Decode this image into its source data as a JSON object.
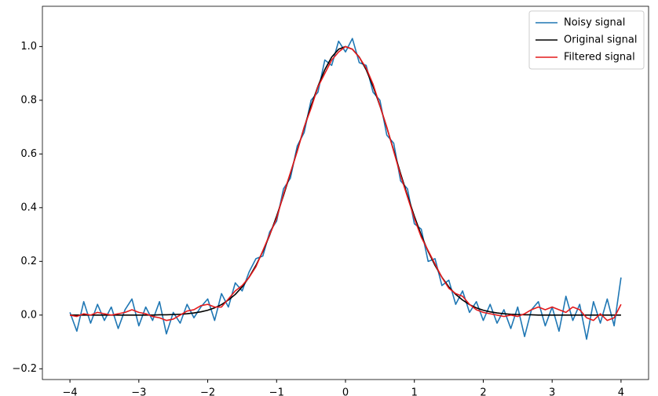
{
  "chart_data": {
    "type": "line",
    "x": [
      -4,
      -3.9,
      -3.8,
      -3.7,
      -3.6,
      -3.5,
      -3.4,
      -3.3,
      -3.2,
      -3.1,
      -3,
      -2.9,
      -2.8,
      -2.7,
      -2.6,
      -2.5,
      -2.4,
      -2.3,
      -2.2,
      -2.1,
      -2,
      -1.9,
      -1.8,
      -1.7,
      -1.6,
      -1.5,
      -1.4,
      -1.3,
      -1.2,
      -1.1,
      -1,
      -0.9,
      -0.8,
      -0.7,
      -0.6,
      -0.5,
      -0.4,
      -0.3,
      -0.2,
      -0.1,
      0,
      0.1,
      0.2,
      0.3,
      0.4,
      0.5,
      0.6,
      0.7,
      0.8,
      0.9,
      1,
      1.1,
      1.2,
      1.3,
      1.4,
      1.5,
      1.6,
      1.7,
      1.8,
      1.9,
      2,
      2.1,
      2.2,
      2.3,
      2.4,
      2.5,
      2.6,
      2.7,
      2.8,
      2.9,
      3,
      3.1,
      3.2,
      3.3,
      3.4,
      3.5,
      3.6,
      3.7,
      3.8,
      3.9,
      4
    ],
    "series": [
      {
        "name": "Noisy signal",
        "color": "#1f77b4",
        "values": [
          0.01,
          -0.06,
          0.05,
          -0.03,
          0.04,
          -0.02,
          0.03,
          -0.05,
          0.02,
          0.06,
          -0.04,
          0.03,
          -0.02,
          0.05,
          -0.07,
          0.01,
          -0.03,
          0.04,
          -0.01,
          0.03,
          0.06,
          -0.02,
          0.08,
          0.03,
          0.12,
          0.09,
          0.16,
          0.21,
          0.22,
          0.31,
          0.35,
          0.47,
          0.51,
          0.63,
          0.68,
          0.8,
          0.83,
          0.95,
          0.93,
          1.02,
          0.98,
          1.03,
          0.94,
          0.93,
          0.83,
          0.8,
          0.67,
          0.64,
          0.5,
          0.47,
          0.34,
          0.32,
          0.2,
          0.21,
          0.11,
          0.13,
          0.04,
          0.09,
          0.01,
          0.05,
          -0.02,
          0.04,
          -0.03,
          0.02,
          -0.05,
          0.03,
          -0.08,
          0.02,
          0.05,
          -0.04,
          0.03,
          -0.06,
          0.07,
          -0.02,
          0.04,
          -0.09,
          0.05,
          -0.03,
          0.06,
          -0.04,
          0.14
        ]
      },
      {
        "name": "Original signal",
        "color": "#000000",
        "values": [
          0,
          0,
          0,
          0,
          0,
          0,
          0,
          0,
          0,
          0,
          0,
          0,
          0,
          0.001,
          0.001,
          0.002,
          0.003,
          0.005,
          0.008,
          0.012,
          0.018,
          0.027,
          0.039,
          0.056,
          0.077,
          0.105,
          0.141,
          0.185,
          0.237,
          0.298,
          0.368,
          0.445,
          0.527,
          0.613,
          0.698,
          0.779,
          0.852,
          0.914,
          0.961,
          0.99,
          1,
          0.99,
          0.961,
          0.914,
          0.852,
          0.779,
          0.698,
          0.613,
          0.527,
          0.445,
          0.368,
          0.298,
          0.237,
          0.185,
          0.141,
          0.105,
          0.077,
          0.056,
          0.039,
          0.027,
          0.018,
          0.012,
          0.008,
          0.005,
          0.003,
          0.002,
          0.001,
          0.001,
          0,
          0,
          0,
          0,
          0,
          0,
          0,
          0,
          0,
          0,
          0,
          0,
          0
        ]
      },
      {
        "name": "Filtered signal",
        "color": "#e41a1c",
        "values": [
          0,
          -0.005,
          0.005,
          0,
          0.01,
          0.005,
          0,
          0.005,
          0.01,
          0.02,
          0.01,
          0.005,
          -0.005,
          -0.01,
          -0.02,
          -0.015,
          0,
          0.015,
          0.02,
          0.035,
          0.04,
          0.03,
          0.03,
          0.06,
          0.09,
          0.11,
          0.14,
          0.18,
          0.24,
          0.3,
          0.36,
          0.45,
          0.53,
          0.61,
          0.7,
          0.77,
          0.85,
          0.9,
          0.95,
          0.98,
          1,
          0.99,
          0.96,
          0.92,
          0.86,
          0.78,
          0.7,
          0.61,
          0.52,
          0.44,
          0.36,
          0.29,
          0.24,
          0.19,
          0.14,
          0.1,
          0.08,
          0.07,
          0.04,
          0.02,
          0.01,
          0.005,
          0,
          -0.005,
          0,
          -0.005,
          0.005,
          0.02,
          0.03,
          0.02,
          0.03,
          0.02,
          0.01,
          0.03,
          0.02,
          -0.01,
          -0.02,
          0.005,
          -0.02,
          -0.01,
          0.04
        ]
      }
    ],
    "xlim": [
      -4.4,
      4.4
    ],
    "ylim": [
      -0.24,
      1.15
    ],
    "xticks": [
      {
        "value": -4,
        "label": "−4"
      },
      {
        "value": -3,
        "label": "−3"
      },
      {
        "value": -2,
        "label": "−2"
      },
      {
        "value": -1,
        "label": "−1"
      },
      0,
      1,
      2,
      3,
      4
    ],
    "yticks": [
      {
        "value": -0.2,
        "label": "−0.2"
      },
      {
        "value": 0,
        "label": "0.0"
      },
      {
        "value": 0.2,
        "label": "0.2"
      },
      {
        "value": 0.4,
        "label": "0.4"
      },
      {
        "value": 0.6,
        "label": "0.6"
      },
      {
        "value": 0.8,
        "label": "0.8"
      },
      {
        "value": 1,
        "label": "1.0"
      }
    ],
    "grid": false,
    "legend": "upper right"
  }
}
